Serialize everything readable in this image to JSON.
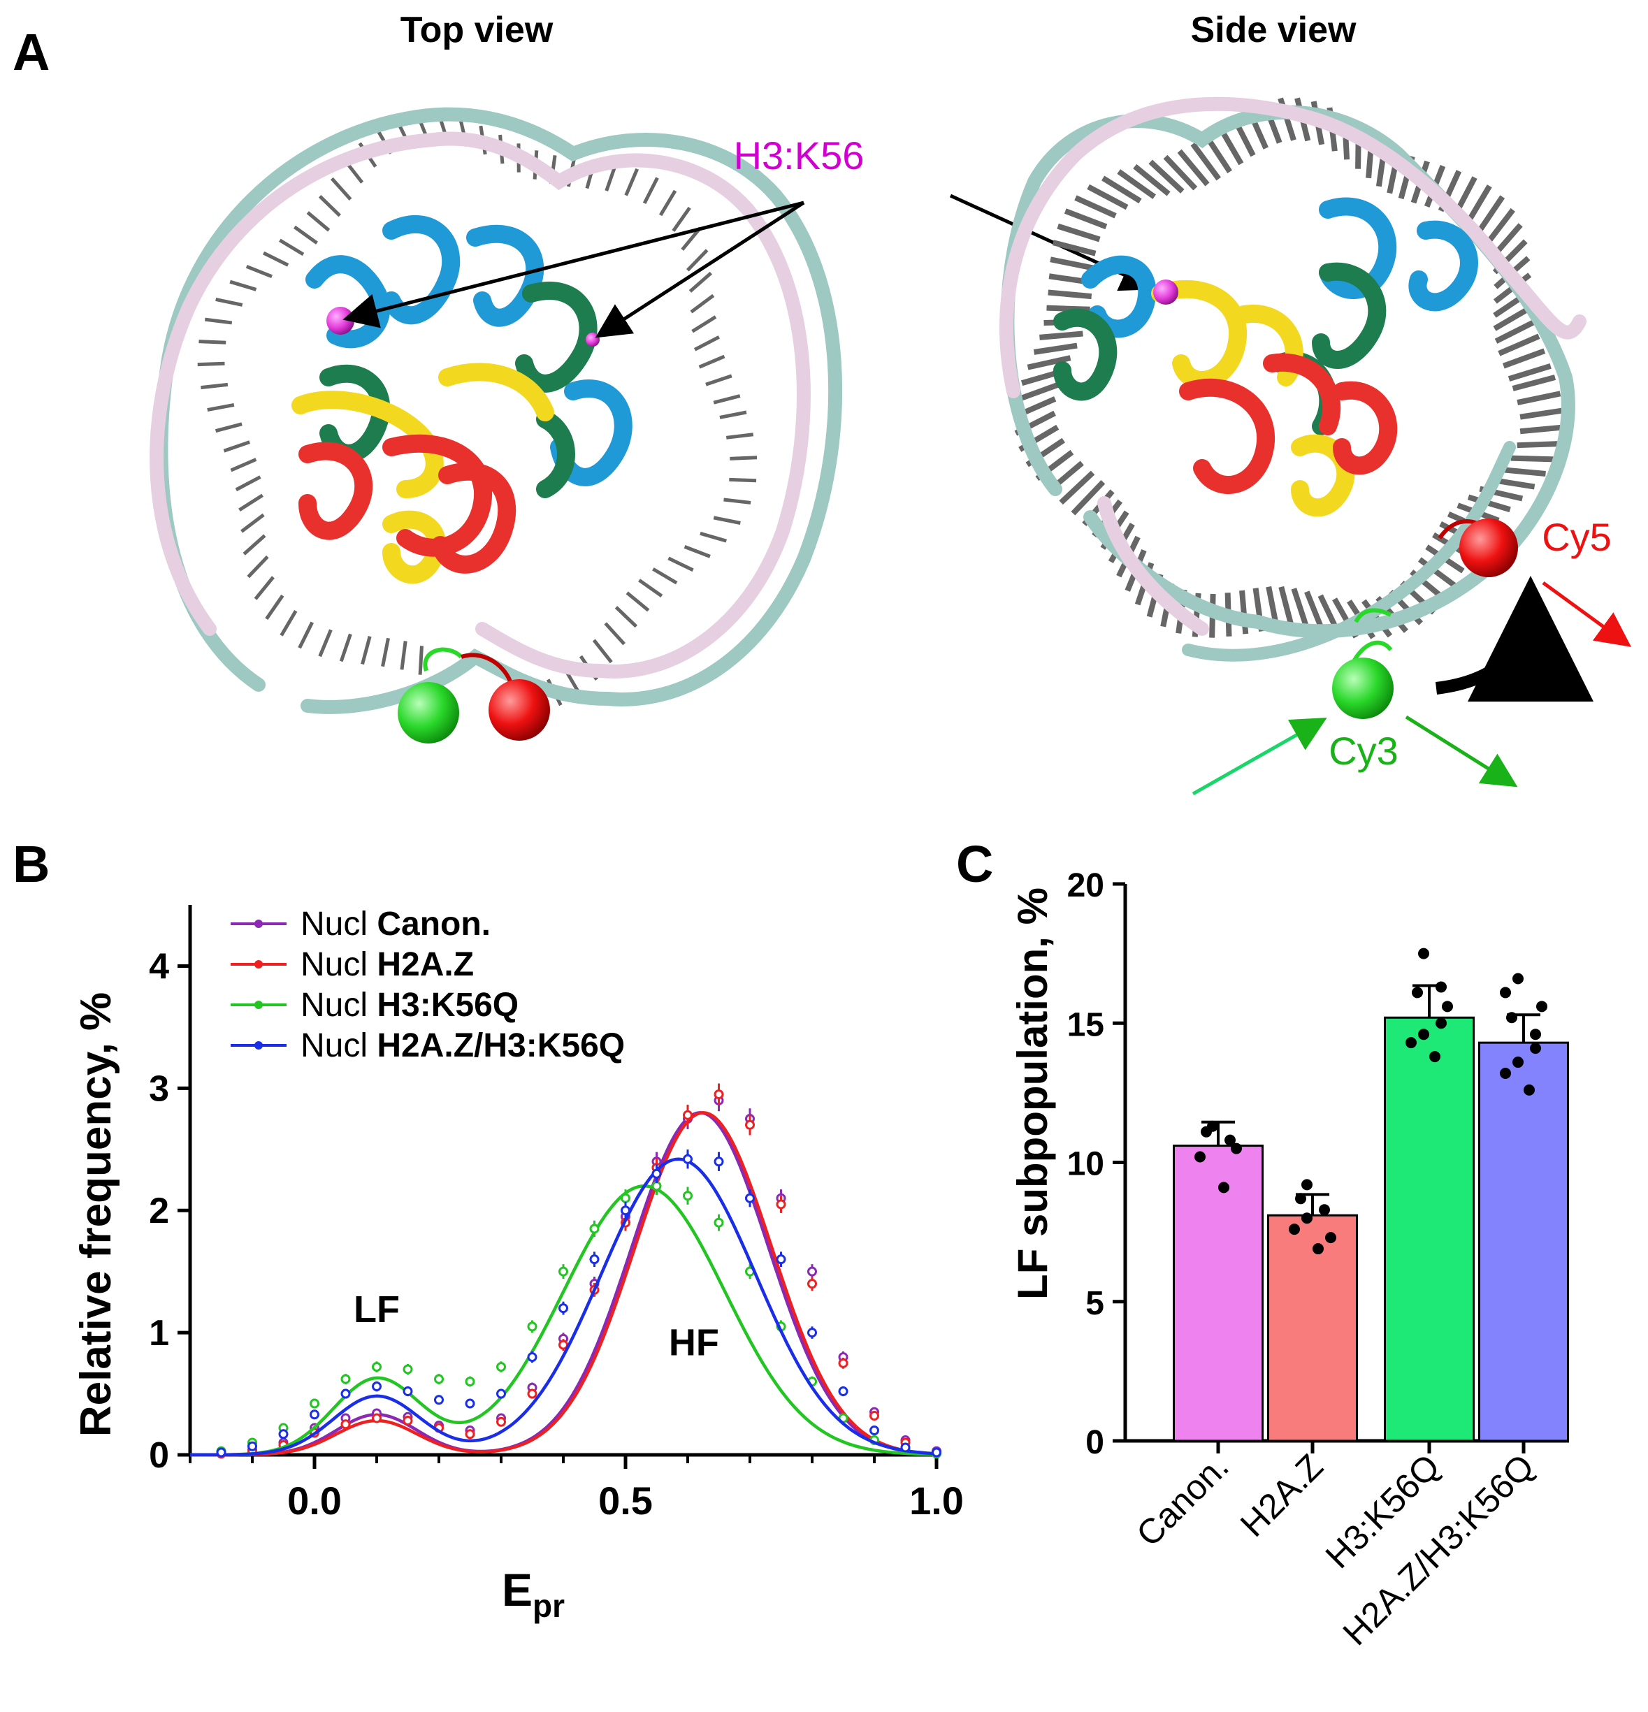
{
  "panel_a": {
    "letter": "A",
    "top_view_title": "Top view",
    "side_view_title": "Side view",
    "h3k56_label": "H3:K56",
    "cy3_label": "Cy3",
    "cy5_label": "Cy5",
    "colors": {
      "dna_strand_a": "#9ec9c3",
      "dna_strand_b": "#e6cfe0",
      "base_pairs": "#666666",
      "h3": "#1f9ad6",
      "h4": "#1e7d4f",
      "h2a": "#f2d81f",
      "h2b": "#e8312c",
      "k56_marker": "#e23ad9",
      "cy3": "#2ad82a",
      "cy5": "#ee1111",
      "label_magenta": "#d100d1",
      "label_red": "#ee1111",
      "label_green": "#19b219"
    }
  },
  "chart_data": [
    {
      "panel": "B",
      "type": "line",
      "title": "",
      "xlabel_main": "E",
      "xlabel_sub": "pr",
      "ylabel": "Relative frequency, %",
      "xlim": [
        -0.2,
        1.0
      ],
      "ylim": [
        0,
        4.5
      ],
      "x_ticks": [
        0.0,
        0.5,
        1.0
      ],
      "x_tick_labels": [
        "0.0",
        "0.5",
        "1.0"
      ],
      "y_ticks": [
        0,
        1,
        2,
        3,
        4
      ],
      "y_tick_labels": [
        "0",
        "1",
        "2",
        "3",
        "4"
      ],
      "legend_position": "top-left",
      "annotations": [
        {
          "text": "LF",
          "x": 0.1,
          "y": 1.2
        },
        {
          "text": "HF",
          "x": 0.61,
          "y": 0.93
        }
      ],
      "series": [
        {
          "legend_prefix": "Nucl ",
          "legend_bold": "Canon.",
          "color": "#8b28b4",
          "components": [
            [
              0.33,
              0.1,
              0.065
            ],
            [
              2.8,
              0.62,
              0.11
            ]
          ],
          "points": [
            [
              -0.15,
              0.01
            ],
            [
              -0.1,
              0.04
            ],
            [
              -0.05,
              0.1
            ],
            [
              0.0,
              0.22
            ],
            [
              0.05,
              0.3
            ],
            [
              0.1,
              0.34
            ],
            [
              0.15,
              0.31
            ],
            [
              0.2,
              0.24
            ],
            [
              0.25,
              0.2
            ],
            [
              0.3,
              0.3
            ],
            [
              0.35,
              0.55
            ],
            [
              0.4,
              0.95
            ],
            [
              0.45,
              1.4
            ],
            [
              0.5,
              1.95
            ],
            [
              0.55,
              2.4
            ],
            [
              0.6,
              2.75
            ],
            [
              0.65,
              2.9
            ],
            [
              0.7,
              2.75
            ],
            [
              0.75,
              2.1
            ],
            [
              0.8,
              1.5
            ],
            [
              0.85,
              0.8
            ],
            [
              0.9,
              0.35
            ],
            [
              0.95,
              0.12
            ],
            [
              1.0,
              0.03
            ]
          ]
        },
        {
          "legend_prefix": "Nucl ",
          "legend_bold": "H2A.Z",
          "color": "#ee2020",
          "components": [
            [
              0.28,
              0.1,
              0.065
            ],
            [
              2.8,
              0.625,
              0.11
            ]
          ],
          "points": [
            [
              -0.15,
              0.01
            ],
            [
              -0.1,
              0.03
            ],
            [
              -0.05,
              0.08
            ],
            [
              0.0,
              0.18
            ],
            [
              0.05,
              0.25
            ],
            [
              0.1,
              0.3
            ],
            [
              0.15,
              0.28
            ],
            [
              0.2,
              0.22
            ],
            [
              0.25,
              0.17
            ],
            [
              0.3,
              0.27
            ],
            [
              0.35,
              0.5
            ],
            [
              0.4,
              0.9
            ],
            [
              0.45,
              1.35
            ],
            [
              0.5,
              1.9
            ],
            [
              0.55,
              2.35
            ],
            [
              0.6,
              2.78
            ],
            [
              0.65,
              2.95
            ],
            [
              0.7,
              2.7
            ],
            [
              0.75,
              2.05
            ],
            [
              0.8,
              1.4
            ],
            [
              0.85,
              0.75
            ],
            [
              0.9,
              0.32
            ],
            [
              0.95,
              0.1
            ],
            [
              1.0,
              0.02
            ]
          ]
        },
        {
          "legend_prefix": "Nucl ",
          "legend_bold": "H3:K56Q",
          "color": "#22c522",
          "components": [
            [
              0.62,
              0.1,
              0.07
            ],
            [
              2.2,
              0.53,
              0.13
            ]
          ],
          "points": [
            [
              -0.15,
              0.03
            ],
            [
              -0.1,
              0.1
            ],
            [
              -0.05,
              0.22
            ],
            [
              0.0,
              0.42
            ],
            [
              0.05,
              0.62
            ],
            [
              0.1,
              0.72
            ],
            [
              0.15,
              0.7
            ],
            [
              0.2,
              0.62
            ],
            [
              0.25,
              0.6
            ],
            [
              0.3,
              0.72
            ],
            [
              0.35,
              1.05
            ],
            [
              0.4,
              1.5
            ],
            [
              0.45,
              1.85
            ],
            [
              0.5,
              2.1
            ],
            [
              0.55,
              2.2
            ],
            [
              0.6,
              2.12
            ],
            [
              0.65,
              1.9
            ],
            [
              0.7,
              1.5
            ],
            [
              0.75,
              1.05
            ],
            [
              0.8,
              0.6
            ],
            [
              0.85,
              0.3
            ],
            [
              0.9,
              0.12
            ],
            [
              0.95,
              0.05
            ],
            [
              1.0,
              0.01
            ]
          ]
        },
        {
          "legend_prefix": "Nucl ",
          "legend_bold": "H2A.Z/H3:K56Q",
          "color": "#1a2ee8",
          "components": [
            [
              0.48,
              0.1,
              0.07
            ],
            [
              2.42,
              0.585,
              0.125
            ]
          ],
          "points": [
            [
              -0.15,
              0.02
            ],
            [
              -0.1,
              0.07
            ],
            [
              -0.05,
              0.17
            ],
            [
              0.0,
              0.33
            ],
            [
              0.05,
              0.5
            ],
            [
              0.1,
              0.56
            ],
            [
              0.15,
              0.52
            ],
            [
              0.2,
              0.45
            ],
            [
              0.25,
              0.42
            ],
            [
              0.3,
              0.5
            ],
            [
              0.35,
              0.8
            ],
            [
              0.4,
              1.2
            ],
            [
              0.45,
              1.6
            ],
            [
              0.5,
              2.0
            ],
            [
              0.55,
              2.3
            ],
            [
              0.6,
              2.42
            ],
            [
              0.65,
              2.4
            ],
            [
              0.7,
              2.1
            ],
            [
              0.75,
              1.6
            ],
            [
              0.8,
              1.0
            ],
            [
              0.85,
              0.52
            ],
            [
              0.9,
              0.2
            ],
            [
              0.95,
              0.06
            ],
            [
              1.0,
              0.02
            ]
          ]
        }
      ]
    },
    {
      "panel": "C",
      "type": "bar",
      "title": "",
      "xlabel": "",
      "ylabel": "LF subpopulation, %",
      "ylim": [
        0,
        20
      ],
      "y_ticks": [
        0,
        5,
        10,
        15,
        20
      ],
      "y_tick_labels": [
        "0",
        "5",
        "10",
        "15",
        "20"
      ],
      "categories": [
        "Canon.",
        "H2A.Z",
        "H3:K56Q",
        "H2A.Z/H3:K56Q"
      ],
      "values": [
        10.6,
        8.1,
        15.2,
        14.3
      ],
      "errors": [
        0.85,
        0.75,
        1.15,
        1.0
      ],
      "colors": [
        "#ee82ee",
        "#f87c7c",
        "#1ee876",
        "#8383fd"
      ],
      "points": [
        [
          11.3,
          10.8,
          10.2,
          9.1,
          11.1,
          10.5
        ],
        [
          9.2,
          8.3,
          7.6,
          6.9,
          8.7,
          7.3,
          8.0
        ],
        [
          17.5,
          15.0,
          14.3,
          13.8,
          16.1,
          15.6,
          14.6,
          16.3
        ],
        [
          16.6,
          14.1,
          13.2,
          12.6,
          15.2,
          15.6,
          13.6,
          14.6,
          16.1
        ]
      ]
    }
  ]
}
